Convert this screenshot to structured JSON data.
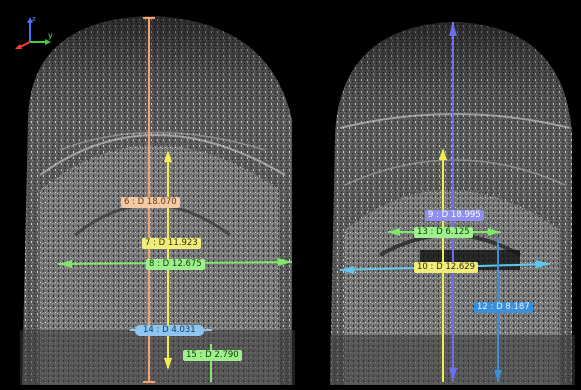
{
  "viewer": {
    "axes": {
      "z": "z",
      "y": "y",
      "x": "x"
    },
    "colors": {
      "orange": "#f4a46a",
      "yellow": "#f2ec55",
      "green": "#7fe86a",
      "purple": "#6e6ef0",
      "lightblue": "#8fc6f0",
      "cyan": "#5ec8f0",
      "blue": "#3a8fd8"
    }
  },
  "measurements": [
    {
      "id": "m6",
      "label": "6 : D 18.070"
    },
    {
      "id": "m7",
      "label": "7 : D 11.923"
    },
    {
      "id": "m8",
      "label": "8 : D 12.675"
    },
    {
      "id": "m14",
      "label": "14 : D 4.031"
    },
    {
      "id": "m15",
      "label": "15 : D 2.790"
    },
    {
      "id": "m9",
      "label": "9 : D 18.995"
    },
    {
      "id": "m13",
      "label": "13 : D 6.125"
    },
    {
      "id": "m10",
      "label": "10 : D 12.629"
    },
    {
      "id": "m12",
      "label": "12 : D 8.187"
    }
  ]
}
